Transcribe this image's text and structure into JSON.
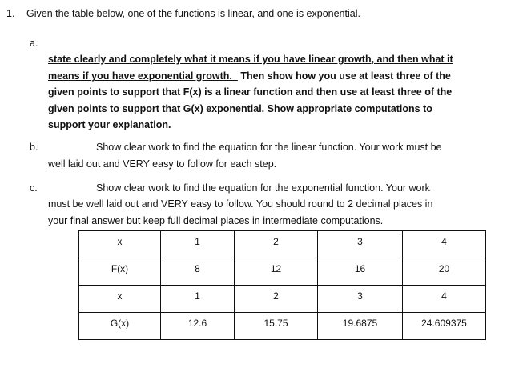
{
  "question": {
    "number": "1.",
    "intro": "Given the table below, one of the functions is linear, and one is exponential.",
    "parts": [
      {
        "label": "a.",
        "lines_underlined": [
          "state clearly and completely what it means if you have linear growth, and then what it",
          "means if you have exponential growth.  "
        ],
        "line2_rest": "Then show how you use at least three of the",
        "lines": [
          "given points to support that F(x) is a linear function and then use at least three of the",
          "given points to support that G(x) exponential.  Show appropriate computations to",
          "support your explanation."
        ]
      },
      {
        "label": "b.",
        "lines": [
          "Show clear work to find the equation for the linear function.  Your work must be",
          "well laid out and VERY easy to follow for each step."
        ]
      },
      {
        "label": "c.",
        "lines": [
          "Show clear work to find the equation for the exponential function.  Your work",
          "must be well laid out and VERY easy to follow.  You should round to 2 decimal places in",
          "your final answer but keep full decimal places in intermediate computations."
        ]
      }
    ]
  },
  "table": {
    "rows": [
      [
        "x",
        "1",
        "2",
        "3",
        "4"
      ],
      [
        "F(x)",
        "8",
        "12",
        "16",
        "20"
      ],
      [
        "x",
        "1",
        "2",
        "3",
        "4"
      ],
      [
        "G(x)",
        "12.6",
        "15.75",
        "19.6875",
        "24.609375"
      ]
    ]
  }
}
